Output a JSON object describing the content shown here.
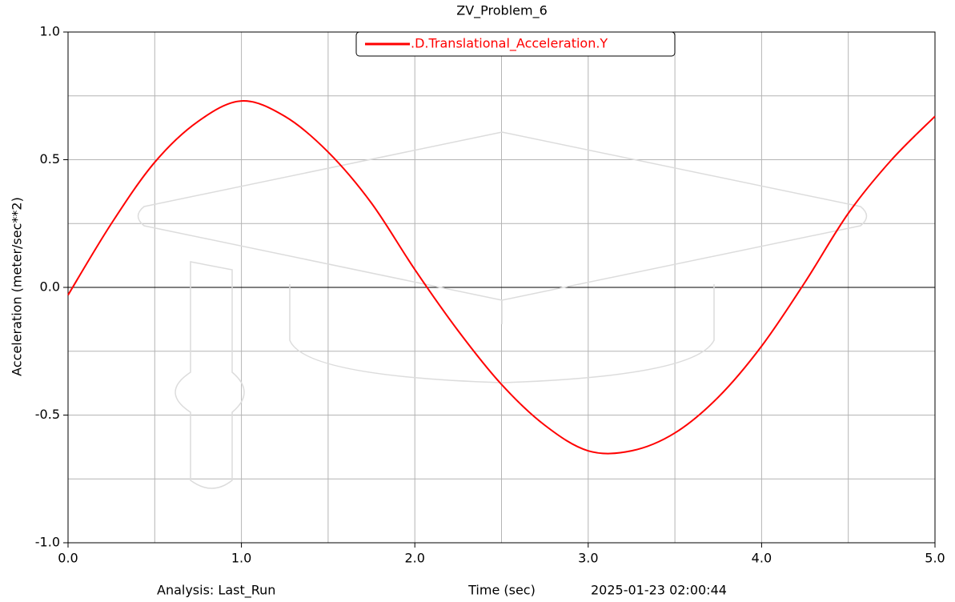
{
  "chart_data": {
    "type": "line",
    "title": "ZV_Problem_6",
    "x_label": "Time (sec)",
    "y_label": "Acceleration (meter/sec**2)",
    "analysis_label": "Analysis:  Last_Run",
    "timestamp": "2025-01-23 02:00:44",
    "x": [
      0,
      0.25,
      0.5,
      0.75,
      1.0,
      1.25,
      1.5,
      1.75,
      2.0,
      2.25,
      2.5,
      2.75,
      3.0,
      3.25,
      3.5,
      3.75,
      4.0,
      4.25,
      4.5,
      4.75,
      5.0
    ],
    "series": [
      {
        "name": ".D.Translational_Acceleration.Y",
        "color": "#ff0000",
        "values": [
          -0.03,
          0.25,
          0.49,
          0.65,
          0.73,
          0.67,
          0.53,
          0.33,
          0.07,
          -0.17,
          -0.38,
          -0.54,
          -0.64,
          -0.64,
          -0.57,
          -0.43,
          -0.23,
          0.02,
          0.29,
          0.5,
          0.67
        ]
      }
    ],
    "xlim": [
      0,
      5
    ],
    "ylim": [
      -1,
      1
    ],
    "xticks": [
      {
        "value": 0,
        "label": "0.0"
      },
      {
        "value": 1,
        "label": "1.0"
      },
      {
        "value": 2,
        "label": "2.0"
      },
      {
        "value": 3,
        "label": "3.0"
      },
      {
        "value": 4,
        "label": "4.0"
      },
      {
        "value": 5,
        "label": "5.0"
      }
    ],
    "xminorticks": [
      0.5,
      1.5,
      2.5,
      3.5,
      4.5
    ],
    "yticks": [
      {
        "value": -1,
        "label": "-1.0"
      },
      {
        "value": -0.5,
        "label": "-0.5"
      },
      {
        "value": 0,
        "label": "0.0"
      },
      {
        "value": 0.5,
        "label": "0.5"
      },
      {
        "value": 1,
        "label": "1.0"
      }
    ],
    "yminorticks": [
      -0.75,
      -0.25,
      0.25,
      0.75
    ],
    "grid": true
  }
}
